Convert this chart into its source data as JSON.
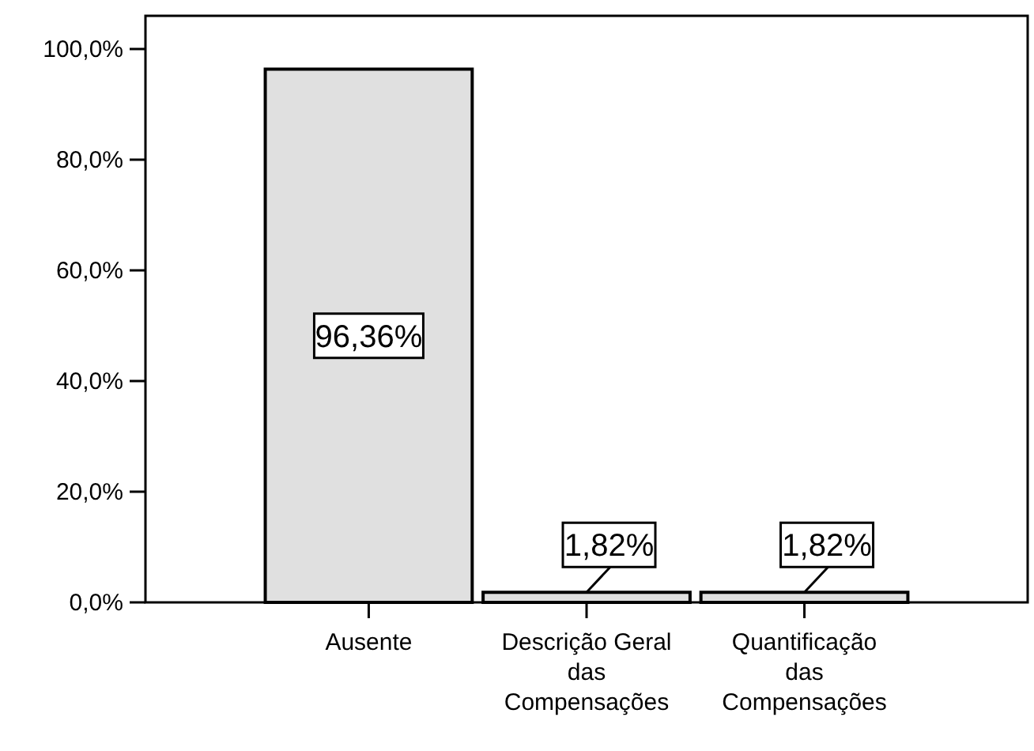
{
  "chart_data": {
    "type": "bar",
    "categories": [
      "Ausente",
      "Descrição Geral das Compensações",
      "Quantificação das Compensações"
    ],
    "values": [
      96.36,
      1.82,
      1.82
    ],
    "value_labels": [
      "96,36%",
      "1,82%",
      "1,82%"
    ],
    "color": "#e0e0e0",
    "ylim": [
      0,
      106
    ],
    "yticks": [
      {
        "value": 0,
        "label": "0,0%"
      },
      {
        "value": 20,
        "label": "20,0%"
      },
      {
        "value": 40,
        "label": "40,0%"
      },
      {
        "value": 60,
        "label": "60,0%"
      },
      {
        "value": 80,
        "label": "80,0%"
      },
      {
        "value": 100,
        "label": "100,0%"
      }
    ],
    "grid": false
  }
}
